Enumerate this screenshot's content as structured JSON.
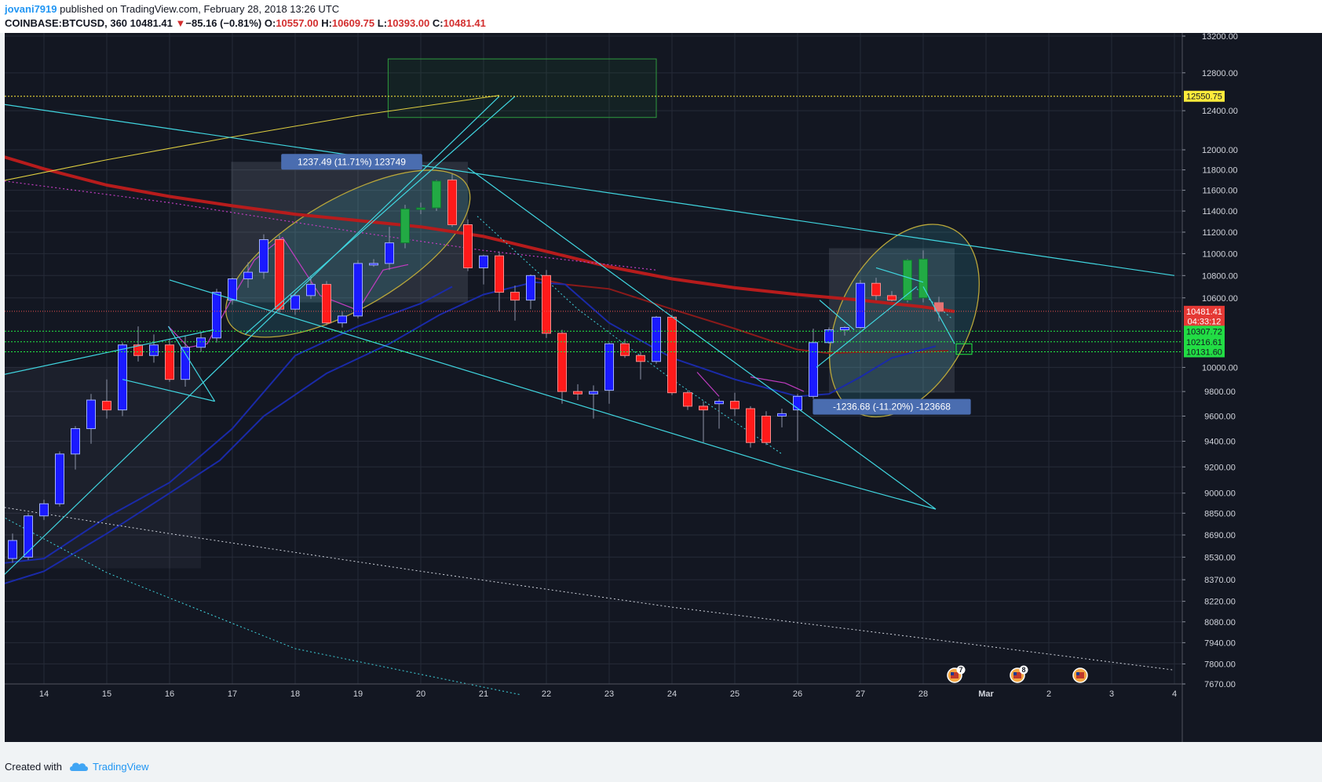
{
  "header": {
    "author": "jovani7919",
    "published_text": "published on TradingView.com, February 28, 2018 13:26 UTC",
    "symbol": "COINBASE:BTCUSD, 360",
    "last": "10481.41",
    "change_arrow": "▼",
    "change": "−85.16 (−0.81%)",
    "open_label": "O:",
    "open": "10557.00",
    "high_label": "H:",
    "high": "10609.75",
    "low_label": "L:",
    "low": "10393.00",
    "close_label": "C:",
    "close": "10481.41"
  },
  "footer": {
    "created_with": "Created with",
    "brand": "TradingView"
  },
  "colors": {
    "background": "#131722",
    "bull": "#1a1aff",
    "bear": "#ff1a1a",
    "green_candle": "#22aa44",
    "trendline": "#40d6e0",
    "ma_red": "#b71c1c",
    "ma_blue": "#1a2aa8",
    "level_yellow": "#ffeb3b",
    "level_green": "#22ee44",
    "last_price": "#ef5350"
  },
  "chart_data": {
    "type": "candlestick",
    "symbol": "COINBASE:BTCUSD",
    "interval": "360",
    "y_axis": {
      "scale": "log",
      "ticks": [
        13200,
        12800,
        12400,
        12000,
        11800,
        11600,
        11400,
        11200,
        11000,
        10800,
        10600,
        10000,
        9800,
        9600,
        9400,
        9200,
        9000,
        8850,
        8690,
        8530,
        8370,
        8220,
        8080,
        7940,
        7800,
        7670
      ],
      "tick_labels": [
        "13200.00",
        "12800.00",
        "12400.00",
        "12000.00",
        "11800.00",
        "11600.00",
        "11400.00",
        "11200.00",
        "11000.00",
        "10800.00",
        "10600.00",
        "10000.00",
        "9800.00",
        "9600.00",
        "9400.00",
        "9200.00",
        "9000.00",
        "8850.00",
        "8690.00",
        "8530.00",
        "8370.00",
        "8220.00",
        "8080.00",
        "7940.00",
        "7800.00",
        "7670.00"
      ]
    },
    "x_axis": {
      "labels": [
        "14",
        "15",
        "16",
        "17",
        "18",
        "19",
        "20",
        "21",
        "22",
        "23",
        "24",
        "25",
        "26",
        "27",
        "28",
        "Mar",
        "2",
        "3",
        "4"
      ],
      "bold_label": "Mar"
    },
    "price_labels": [
      {
        "price": 12550.75,
        "text": "12550.75",
        "kind": "level-yellow"
      },
      {
        "price": 10481.41,
        "text": "10481.41",
        "kind": "last"
      },
      {
        "price": 10395,
        "text": "04:33:12",
        "kind": "countdown"
      },
      {
        "price": 10307.72,
        "text": "10307.72",
        "kind": "level-green"
      },
      {
        "price": 10216.61,
        "text": "10216.61",
        "kind": "level-green"
      },
      {
        "price": 10131.6,
        "text": "10131.60",
        "kind": "level-green"
      }
    ],
    "measure_labels": [
      {
        "text": "1237.49 (11.71%) 123749",
        "x": 18.9,
        "price": 11880
      },
      {
        "text": "-1236.68 (-11.20%) -123668",
        "x": 27.5,
        "price": 9675
      }
    ],
    "event_badges": [
      {
        "x": 28.5,
        "count": "7"
      },
      {
        "x": 29.5,
        "count": "8"
      },
      {
        "x": 30.5,
        "count": ""
      }
    ],
    "candles": [
      {
        "x": 13.25,
        "o": 8560,
        "h": 8650,
        "l": 8470,
        "c": 8640
      },
      {
        "x": 13.5,
        "o": 8520,
        "h": 8700,
        "l": 8490,
        "c": 8650
      },
      {
        "x": 13.75,
        "o": 8530,
        "h": 8850,
        "l": 8510,
        "c": 8830
      },
      {
        "x": 14.0,
        "o": 8830,
        "h": 8950,
        "l": 8800,
        "c": 8920
      },
      {
        "x": 14.25,
        "o": 8920,
        "h": 9320,
        "l": 8900,
        "c": 9300
      },
      {
        "x": 14.5,
        "o": 9300,
        "h": 9520,
        "l": 9180,
        "c": 9500
      },
      {
        "x": 14.75,
        "o": 9500,
        "h": 9780,
        "l": 9380,
        "c": 9730
      },
      {
        "x": 15.0,
        "o": 9720,
        "h": 9900,
        "l": 9580,
        "c": 9650
      },
      {
        "x": 15.25,
        "o": 9650,
        "h": 10210,
        "l": 9600,
        "c": 10190
      },
      {
        "x": 15.5,
        "o": 10190,
        "h": 10350,
        "l": 10050,
        "c": 10100
      },
      {
        "x": 15.75,
        "o": 10100,
        "h": 10280,
        "l": 10040,
        "c": 10190
      },
      {
        "x": 16.0,
        "o": 10190,
        "h": 10240,
        "l": 9880,
        "c": 9900
      },
      {
        "x": 16.25,
        "o": 9900,
        "h": 10270,
        "l": 9840,
        "c": 10170
      },
      {
        "x": 16.5,
        "o": 10170,
        "h": 10300,
        "l": 10130,
        "c": 10250
      },
      {
        "x": 16.75,
        "o": 10250,
        "h": 10680,
        "l": 10210,
        "c": 10650
      },
      {
        "x": 17.0,
        "o": 10580,
        "h": 10780,
        "l": 10540,
        "c": 10770
      },
      {
        "x": 17.25,
        "o": 10770,
        "h": 10920,
        "l": 10690,
        "c": 10830
      },
      {
        "x": 17.5,
        "o": 10830,
        "h": 11180,
        "l": 10770,
        "c": 11130
      },
      {
        "x": 17.75,
        "o": 11130,
        "h": 11170,
        "l": 10470,
        "c": 10500
      },
      {
        "x": 18.0,
        "o": 10500,
        "h": 10650,
        "l": 10450,
        "c": 10620
      },
      {
        "x": 18.25,
        "o": 10620,
        "h": 10800,
        "l": 10590,
        "c": 10720
      },
      {
        "x": 18.5,
        "o": 10720,
        "h": 10750,
        "l": 10360,
        "c": 10380
      },
      {
        "x": 18.75,
        "o": 10380,
        "h": 10480,
        "l": 10340,
        "c": 10440
      },
      {
        "x": 19.0,
        "o": 10440,
        "h": 10940,
        "l": 10420,
        "c": 10910
      },
      {
        "x": 19.25,
        "o": 10900,
        "h": 10950,
        "l": 10880,
        "c": 10910
      },
      {
        "x": 19.5,
        "o": 10910,
        "h": 11250,
        "l": 10850,
        "c": 11100
      },
      {
        "x": 19.75,
        "o": 11100,
        "h": 11460,
        "l": 11050,
        "c": 11420,
        "green": true
      },
      {
        "x": 20.0,
        "o": 11420,
        "h": 11480,
        "l": 11370,
        "c": 11430,
        "green": true
      },
      {
        "x": 20.25,
        "o": 11430,
        "h": 11700,
        "l": 11400,
        "c": 11690,
        "green": true
      },
      {
        "x": 20.5,
        "o": 11700,
        "h": 11760,
        "l": 11250,
        "c": 11270
      },
      {
        "x": 20.75,
        "o": 11270,
        "h": 11320,
        "l": 10840,
        "c": 10870
      },
      {
        "x": 21.0,
        "o": 10870,
        "h": 10990,
        "l": 10720,
        "c": 10980
      },
      {
        "x": 21.25,
        "o": 10980,
        "h": 11020,
        "l": 10480,
        "c": 10650
      },
      {
        "x": 21.5,
        "o": 10650,
        "h": 10710,
        "l": 10400,
        "c": 10580
      },
      {
        "x": 21.75,
        "o": 10580,
        "h": 10810,
        "l": 10500,
        "c": 10800
      },
      {
        "x": 22.0,
        "o": 10800,
        "h": 10850,
        "l": 10250,
        "c": 10290
      },
      {
        "x": 22.25,
        "o": 10290,
        "h": 10320,
        "l": 9700,
        "c": 9800
      },
      {
        "x": 22.5,
        "o": 9800,
        "h": 9860,
        "l": 9730,
        "c": 9780
      },
      {
        "x": 22.75,
        "o": 9780,
        "h": 9850,
        "l": 9580,
        "c": 9800
      },
      {
        "x": 23.0,
        "o": 9810,
        "h": 10210,
        "l": 9700,
        "c": 10200
      },
      {
        "x": 23.25,
        "o": 10200,
        "h": 10240,
        "l": 10080,
        "c": 10100
      },
      {
        "x": 23.5,
        "o": 10100,
        "h": 10130,
        "l": 9900,
        "c": 10050
      },
      {
        "x": 23.75,
        "o": 10050,
        "h": 10440,
        "l": 10030,
        "c": 10430
      },
      {
        "x": 24.0,
        "o": 10430,
        "h": 10450,
        "l": 9770,
        "c": 9790
      },
      {
        "x": 24.25,
        "o": 9790,
        "h": 9810,
        "l": 9650,
        "c": 9680
      },
      {
        "x": 24.5,
        "o": 9680,
        "h": 9720,
        "l": 9390,
        "c": 9650
      },
      {
        "x": 24.75,
        "o": 9700,
        "h": 9740,
        "l": 9500,
        "c": 9720
      },
      {
        "x": 25.0,
        "o": 9720,
        "h": 9790,
        "l": 9600,
        "c": 9660
      },
      {
        "x": 25.25,
        "o": 9660,
        "h": 9680,
        "l": 9350,
        "c": 9390
      },
      {
        "x": 25.5,
        "o": 9600,
        "h": 9640,
        "l": 9370,
        "c": 9390
      },
      {
        "x": 25.75,
        "o": 9600,
        "h": 9660,
        "l": 9510,
        "c": 9620
      },
      {
        "x": 26.0,
        "o": 9650,
        "h": 9780,
        "l": 9400,
        "c": 9760
      },
      {
        "x": 26.25,
        "o": 9760,
        "h": 10330,
        "l": 9740,
        "c": 10210
      },
      {
        "x": 26.5,
        "o": 10210,
        "h": 10340,
        "l": 10200,
        "c": 10320
      },
      {
        "x": 26.75,
        "o": 10320,
        "h": 10350,
        "l": 10270,
        "c": 10340
      },
      {
        "x": 27.0,
        "o": 10340,
        "h": 10760,
        "l": 10330,
        "c": 10730
      },
      {
        "x": 27.25,
        "o": 10730,
        "h": 10780,
        "l": 10580,
        "c": 10620
      },
      {
        "x": 27.5,
        "o": 10620,
        "h": 10660,
        "l": 10570,
        "c": 10580
      },
      {
        "x": 27.75,
        "o": 10580,
        "h": 10950,
        "l": 10560,
        "c": 10940,
        "green": true
      },
      {
        "x": 28.0,
        "o": 10600,
        "h": 11030,
        "l": 10560,
        "c": 10950,
        "green": true
      },
      {
        "x": 28.25,
        "o": 10557,
        "h": 10609.75,
        "l": 10393,
        "c": 10481.41,
        "faded": true
      }
    ]
  }
}
